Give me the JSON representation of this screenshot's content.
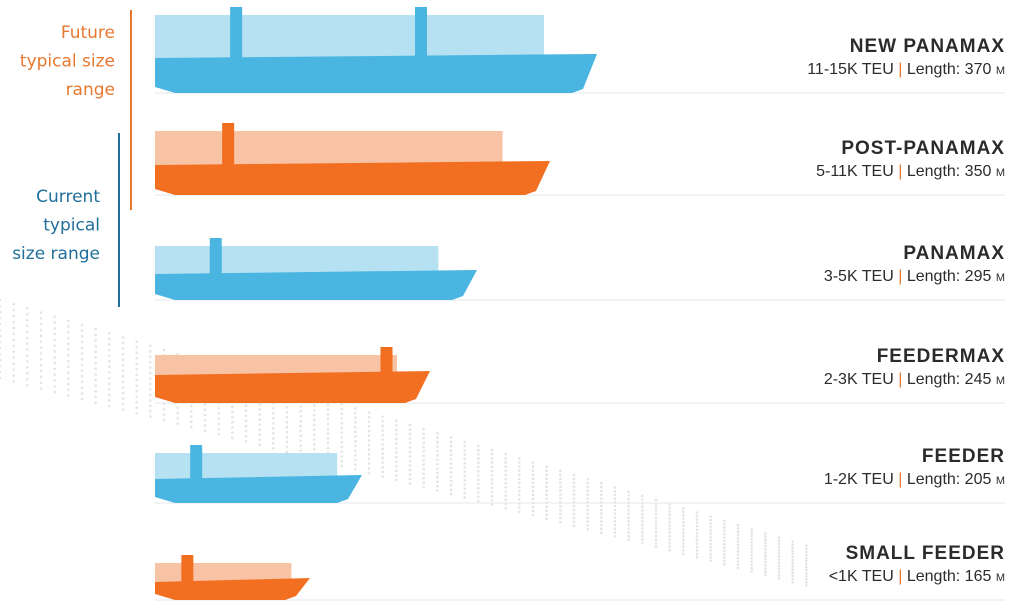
{
  "brackets": [
    {
      "lines": [
        "Future",
        "typical size",
        "range"
      ]
    },
    {
      "lines": [
        "Current",
        "typical",
        "size range"
      ]
    }
  ],
  "separator": "|",
  "ships": [
    {
      "name": "NEW PANAMAX",
      "capacity": "11-15K TEU",
      "length": "Length: 370",
      "unit": "M"
    },
    {
      "name": "POST-PANAMAX",
      "capacity": "5-11K TEU",
      "length": "Length: 350",
      "unit": "M"
    },
    {
      "name": "PANAMAX",
      "capacity": "3-5K TEU",
      "length": "Length: 295",
      "unit": "M"
    },
    {
      "name": "FEEDERMAX",
      "capacity": "2-3K TEU",
      "length": "Length: 245",
      "unit": "M"
    },
    {
      "name": "FEEDER",
      "capacity": "1-2K TEU",
      "length": "Length: 205",
      "unit": "M"
    },
    {
      "name": "SMALL FEEDER",
      "capacity": "<1K TEU",
      "length": "Length: 165",
      "unit": "M"
    }
  ]
}
